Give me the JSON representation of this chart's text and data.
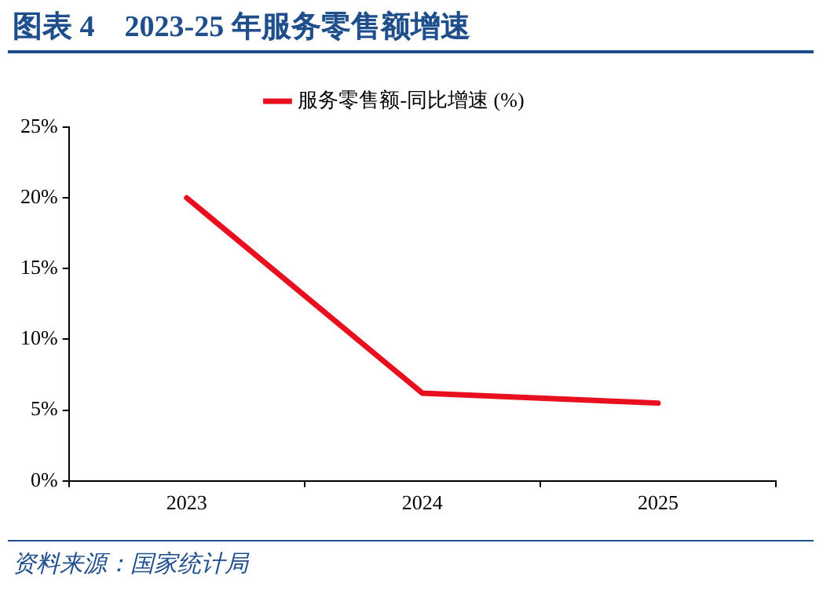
{
  "chart_data": {
    "type": "line",
    "title": "图表 4　2023-25 年服务零售额增速",
    "categories": [
      "2023",
      "2024",
      "2025"
    ],
    "series": [
      {
        "name": "服务零售额-同比增速 (%)",
        "color": "#e8101e",
        "values": [
          20,
          6.2,
          5.5
        ]
      }
    ],
    "ylim": [
      0,
      25
    ],
    "yticks": [
      {
        "value": 0,
        "label": "0%"
      },
      {
        "value": 5,
        "label": "5%"
      },
      {
        "value": 10,
        "label": "10%"
      },
      {
        "value": 15,
        "label": "15%"
      },
      {
        "value": 20,
        "label": "20%"
      },
      {
        "value": 25,
        "label": "25%"
      }
    ],
    "legend": "top",
    "marker": "none",
    "line_style": "solid",
    "grid": false,
    "annotations": [
      "资料来源：国家统计局"
    ]
  }
}
